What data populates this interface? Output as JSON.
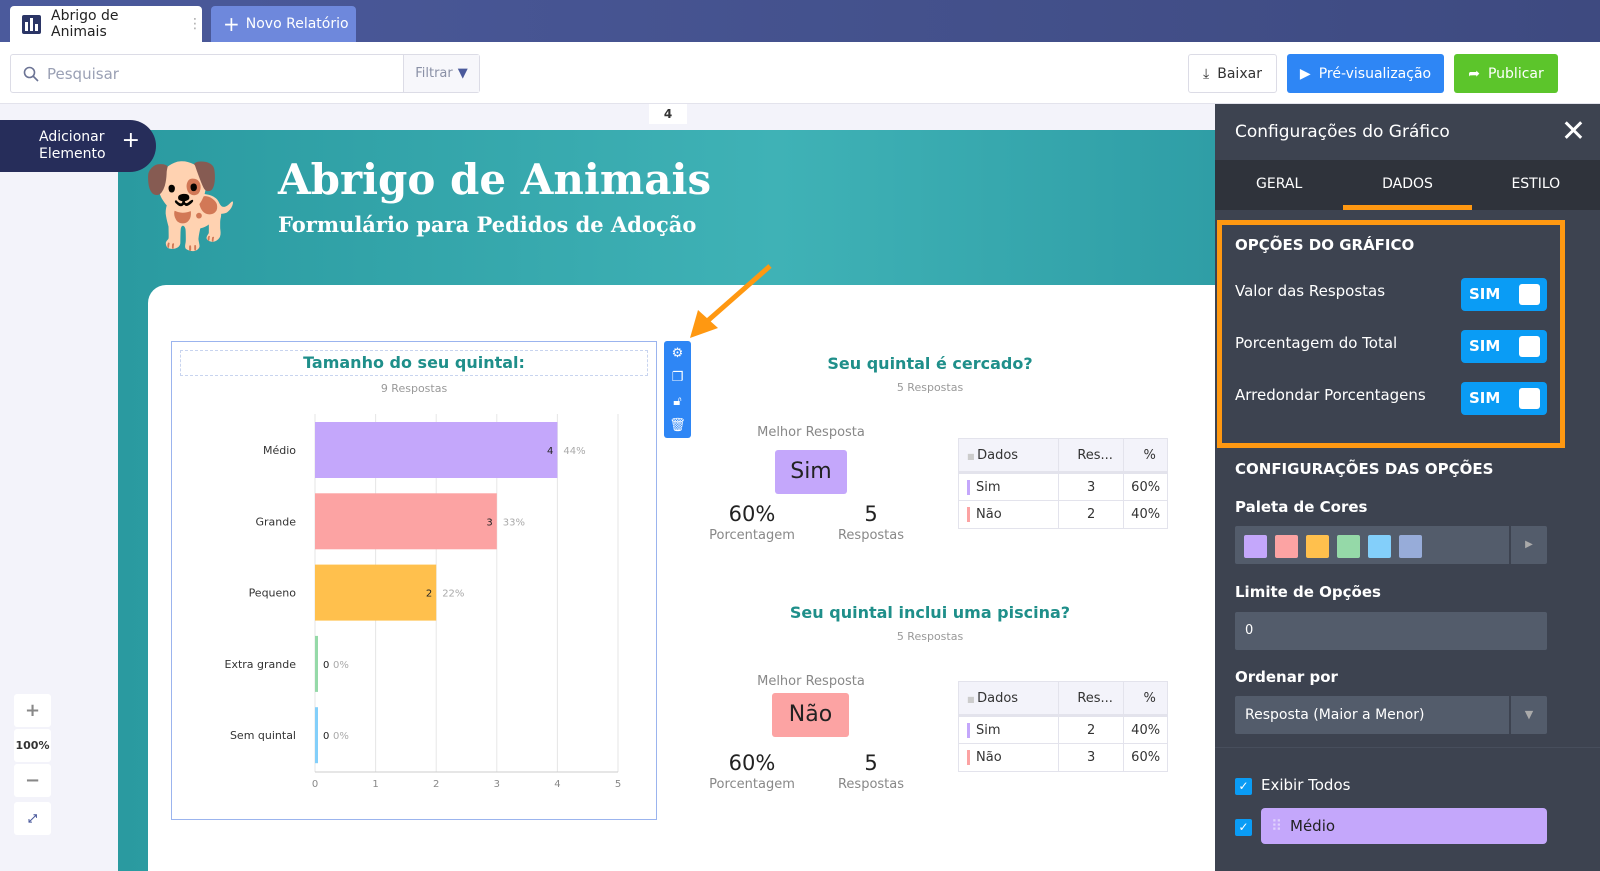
{
  "tabs": {
    "active": "Abrigo de Animais",
    "new": "Novo Relatório"
  },
  "toolbar": {
    "search_placeholder": "Pesquisar",
    "filter": "Filtrar",
    "download": "Baixar",
    "preview": "Pré-visualização",
    "publish": "Publicar"
  },
  "canvas": {
    "add_element": [
      "Adicionar",
      "Elemento"
    ],
    "page_number": "4",
    "zoom": "100%"
  },
  "report": {
    "title": "Abrigo de Animais",
    "subtitle": "Formulário para Pedidos de Adoção"
  },
  "chart_data": {
    "type": "bar",
    "orientation": "horizontal",
    "title": "Tamanho do seu quintal:",
    "subtitle": "9 Respostas",
    "categories": [
      "Médio",
      "Grande",
      "Pequeno",
      "Extra grande",
      "Sem quintal"
    ],
    "values": [
      4,
      3,
      2,
      0,
      0
    ],
    "percent_labels": [
      "44%",
      "33%",
      "22%",
      "0%",
      "0%"
    ],
    "colors": [
      "#c4a7fb",
      "#fca3a3",
      "#ffc04d",
      "#95d9a8",
      "#83cffa"
    ],
    "xlim": [
      0,
      5
    ],
    "xticks": [
      "0",
      "1",
      "2",
      "3",
      "4",
      "5"
    ],
    "grid": true
  },
  "questions": [
    {
      "title": "Seu quintal é cercado?",
      "responses": "5 Respostas",
      "best_label": "Melhor Resposta",
      "best": "Sim",
      "best_color": "#c4a7fb",
      "pct": "60%",
      "pct_label": "Porcentagem",
      "count": "5",
      "count_label": "Respostas",
      "table": {
        "headers": [
          "Dados",
          "Res...",
          "%"
        ],
        "rows": [
          [
            "Sim",
            "3",
            "60%"
          ],
          [
            "Não",
            "2",
            "40%"
          ]
        ]
      }
    },
    {
      "title": "Seu quintal inclui uma piscina?",
      "responses": "5 Respostas",
      "best_label": "Melhor Resposta",
      "best": "Não",
      "best_color": "#fca3a3",
      "pct": "60%",
      "pct_label": "Porcentagem",
      "count": "5",
      "count_label": "Respostas",
      "table": {
        "headers": [
          "Dados",
          "Res...",
          "%"
        ],
        "rows": [
          [
            "Sim",
            "2",
            "40%"
          ],
          [
            "Não",
            "3",
            "60%"
          ]
        ]
      }
    }
  ],
  "panel": {
    "title": "Configurações do Gráfico",
    "tabs": [
      "GERAL",
      "DADOS",
      "ESTILO"
    ],
    "active_tab": "DADOS",
    "chart_options": {
      "heading": "OPÇÕES DO GRÁFICO",
      "items": [
        {
          "label": "Valor das Respostas",
          "value": "SIM"
        },
        {
          "label": "Porcentagem do Total",
          "value": "SIM"
        },
        {
          "label": "Arredondar Porcentagens",
          "value": "SIM"
        }
      ]
    },
    "option_settings": {
      "heading": "CONFIGURAÇÕES DAS OPÇÕES",
      "palette_label": "Paleta de Cores",
      "palette": [
        "#c4a7fb",
        "#fca3a3",
        "#ffc04d",
        "#95d9a8",
        "#83cffa",
        "#97acd9"
      ],
      "limit_label": "Limite de Opções",
      "limit_value": "0",
      "sort_label": "Ordenar por",
      "sort_value": "Resposta (Maior a Menor)",
      "show_all": "Exibir Todos",
      "first_option": "Médio"
    }
  }
}
